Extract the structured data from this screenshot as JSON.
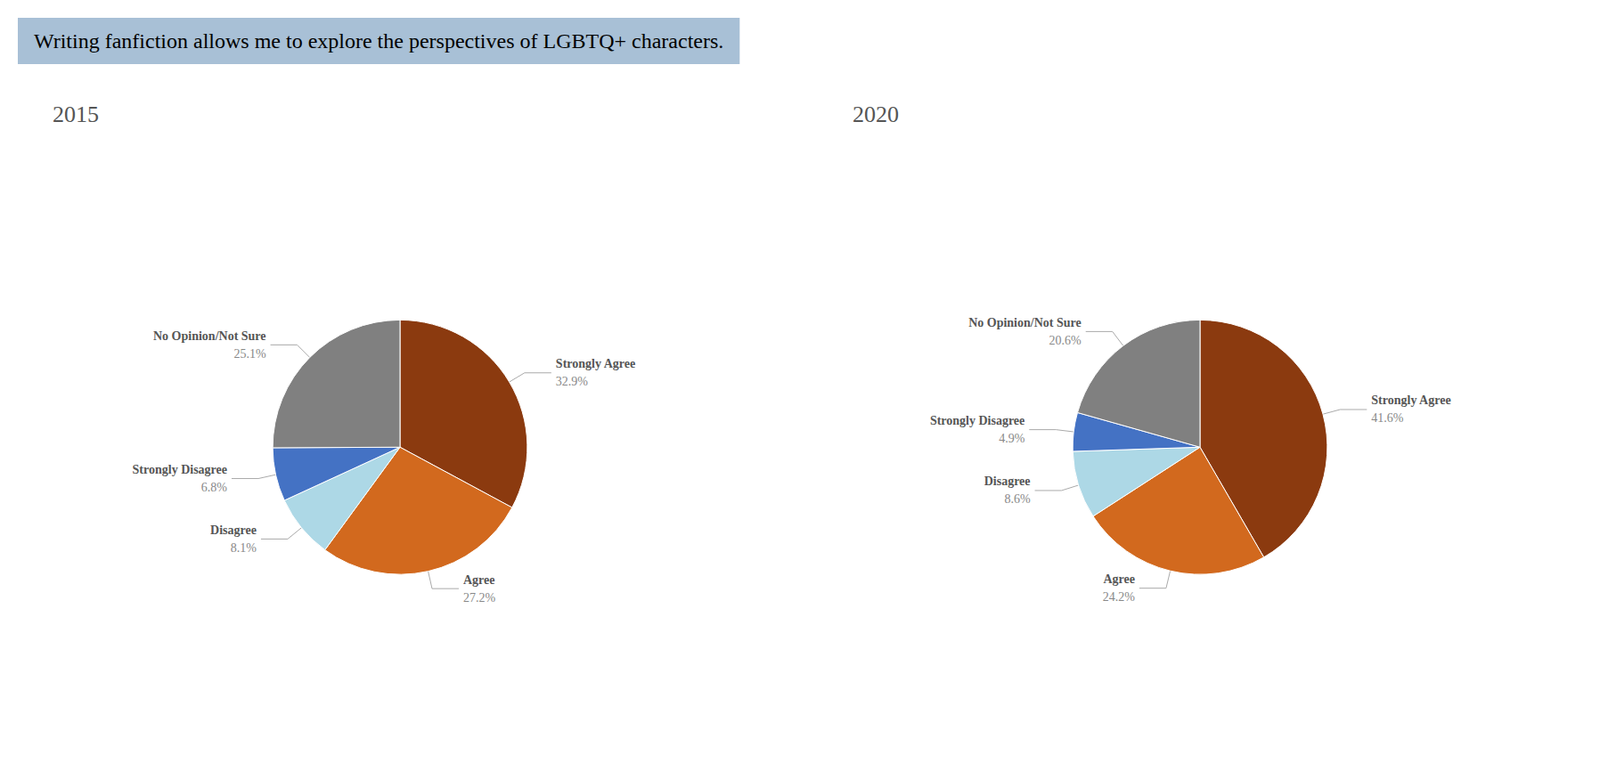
{
  "title": "Writing fanfiction allows me to explore the perspectives of LGBTQ+ characters.",
  "chart_data": [
    {
      "type": "pie",
      "title": "2015",
      "categories": [
        "Strongly Agree",
        "Agree",
        "Disagree",
        "Strongly Disagree",
        "No Opinion/Not Sure"
      ],
      "values": [
        32.9,
        27.2,
        8.1,
        6.8,
        25.1
      ],
      "value_labels": [
        "32.9%",
        "27.2%",
        "8.1%",
        "6.8%",
        "25.1%"
      ],
      "colors": [
        "#8B3A0F",
        "#D2691E",
        "#ADD8E6",
        "#4472C4",
        "#808080"
      ],
      "data_labels": true
    },
    {
      "type": "pie",
      "title": "2020",
      "categories": [
        "Strongly Agree",
        "Agree",
        "Disagree",
        "Strongly Disagree",
        "No Opinion/Not Sure"
      ],
      "values": [
        41.6,
        24.2,
        8.6,
        4.9,
        20.6
      ],
      "value_labels": [
        "41.6%",
        "24.2%",
        "8.6%",
        "4.9%",
        "20.6%"
      ],
      "colors": [
        "#8B3A0F",
        "#D2691E",
        "#ADD8E6",
        "#4472C4",
        "#808080"
      ],
      "data_labels": true
    }
  ]
}
